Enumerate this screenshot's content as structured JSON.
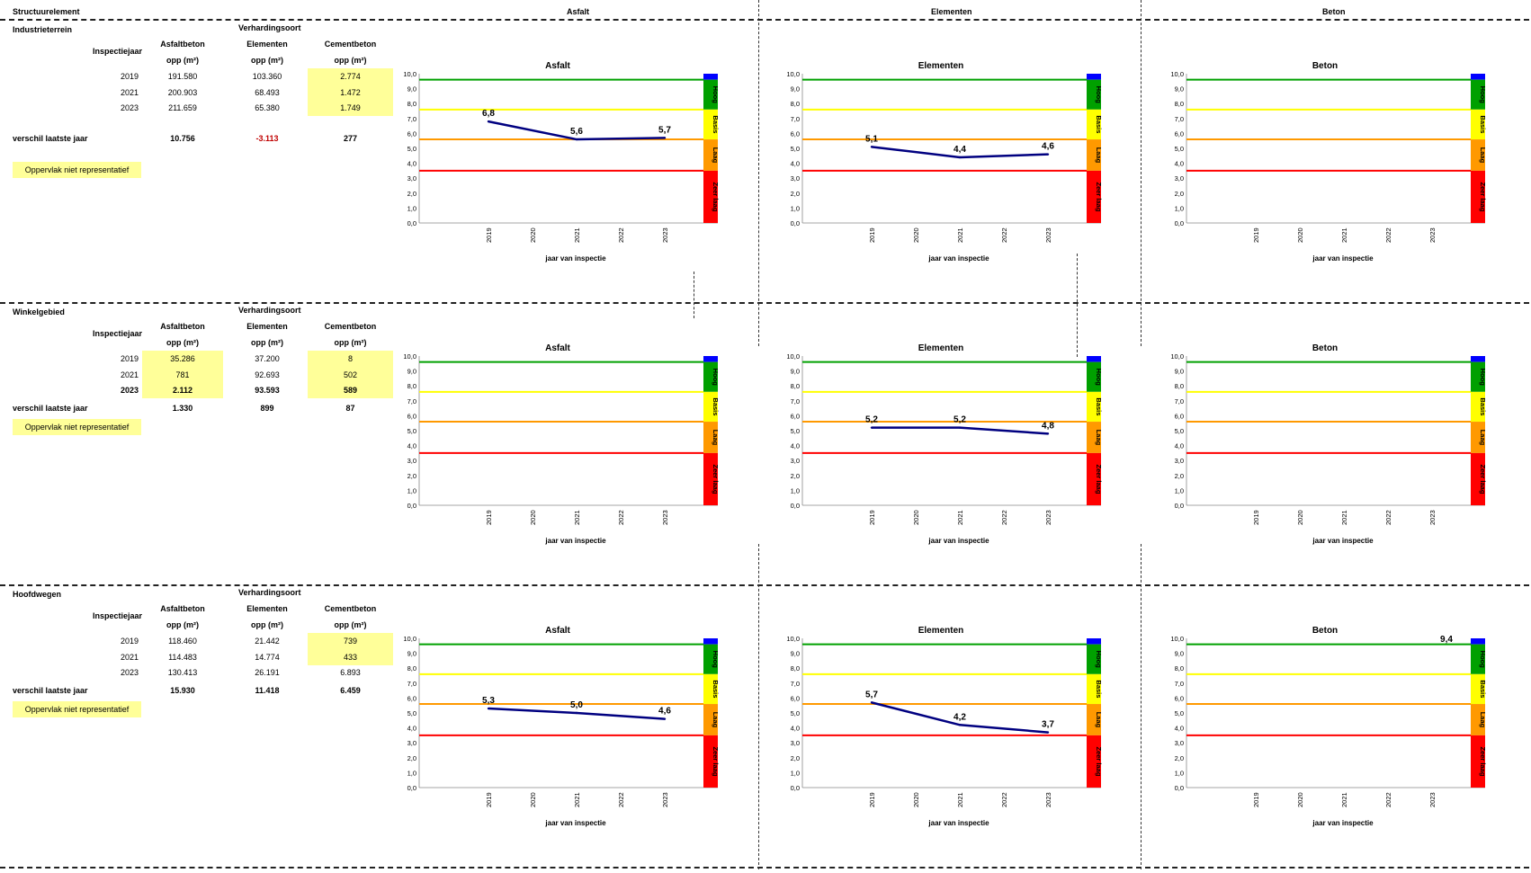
{
  "header": {
    "structuur_label": "Structuurelement",
    "col_asfalt": "Asfalt",
    "col_elementen": "Elementen",
    "col_beton": "Beton"
  },
  "legend_colors": {
    "hoog": "#00a000",
    "basis": "#ffff00",
    "laag": "#ff9900",
    "zeer_laag": "#ff0000",
    "top": "#0000ff",
    "line": "#000080"
  },
  "sections": [
    {
      "name": "Industrieterrein",
      "verhardingsoort": "Verhardingsoort",
      "inspectiejaar": "Inspectiejaar",
      "col_headers": [
        "Asfaltbeton",
        "Elementen",
        "Cementbeton"
      ],
      "unit": "opp (m²)",
      "rows": [
        {
          "year": "2019",
          "vals": [
            "191.580",
            "103.360",
            "2.774"
          ],
          "hl": [
            false,
            false,
            true
          ],
          "bold": false
        },
        {
          "year": "2021",
          "vals": [
            "200.903",
            "68.493",
            "1.472"
          ],
          "hl": [
            false,
            false,
            true
          ],
          "bold": false
        },
        {
          "year": "2023",
          "vals": [
            "211.659",
            "65.380",
            "1.749"
          ],
          "hl": [
            false,
            false,
            true
          ],
          "bold": false
        }
      ],
      "diff_label": "verschil laatste jaar",
      "diff": [
        "10.756",
        "-3.113",
        "277"
      ],
      "diff_red": [
        false,
        true,
        false
      ],
      "badge": "Oppervlak niet representatief"
    },
    {
      "name": "Winkelgebied",
      "verhardingsoort": "Verhardingsoort",
      "inspectiejaar": "Inspectiejaar",
      "col_headers": [
        "Asfaltbeton",
        "Elementen",
        "Cementbeton"
      ],
      "unit": "opp (m²)",
      "rows": [
        {
          "year": "2019",
          "vals": [
            "35.286",
            "37.200",
            "8"
          ],
          "hl": [
            true,
            false,
            true
          ],
          "bold": false
        },
        {
          "year": "2021",
          "vals": [
            "781",
            "92.693",
            "502"
          ],
          "hl": [
            true,
            false,
            true
          ],
          "bold": false
        },
        {
          "year": "2023",
          "vals": [
            "2.112",
            "93.593",
            "589"
          ],
          "hl": [
            true,
            false,
            true
          ],
          "bold": true
        }
      ],
      "diff_label": "verschil laatste jaar",
      "diff": [
        "1.330",
        "899",
        "87"
      ],
      "diff_red": [
        false,
        false,
        false
      ],
      "badge": "Oppervlak niet representatief"
    },
    {
      "name": "Hoofdwegen",
      "verhardingsoort": "Verhardingsoort",
      "inspectiejaar": "Inspectiejaar",
      "col_headers": [
        "Asfaltbeton",
        "Elementen",
        "Cementbeton"
      ],
      "unit": "opp (m²)",
      "rows": [
        {
          "year": "2019",
          "vals": [
            "118.460",
            "21.442",
            "739"
          ],
          "hl": [
            false,
            false,
            true
          ],
          "bold": false
        },
        {
          "year": "2021",
          "vals": [
            "114.483",
            "14.774",
            "433"
          ],
          "hl": [
            false,
            false,
            true
          ],
          "bold": false
        },
        {
          "year": "2023",
          "vals": [
            "130.413",
            "26.191",
            "6.893"
          ],
          "hl": [
            false,
            false,
            false
          ],
          "bold": false
        }
      ],
      "diff_label": "verschil laatste jaar",
      "diff": [
        "15.930",
        "11.418",
        "6.459"
      ],
      "diff_red": [
        false,
        false,
        false
      ],
      "badge": "Oppervlak niet representatief"
    }
  ],
  "chart_data": [
    {
      "type": "line",
      "title": "Asfalt",
      "xlabel": "jaar van inspectie",
      "x": [
        "2019",
        "2020",
        "2021",
        "2022",
        "2023"
      ],
      "ylim": [
        0,
        10
      ],
      "yticks": [
        "0,0",
        "1,0",
        "2,0",
        "3,0",
        "4,0",
        "5,0",
        "6,0",
        "7,0",
        "8,0",
        "9,0",
        "10,0"
      ],
      "thresholds": [
        3.5,
        5.6,
        7.6,
        9.6
      ],
      "band_labels": [
        "Hoog",
        "Basis",
        "Laag",
        "Zeer laag"
      ],
      "points": [
        {
          "x": "2019",
          "y": 6.8,
          "label": "6,8"
        },
        {
          "x": "2021",
          "y": 5.6,
          "label": "5,6"
        },
        {
          "x": "2023",
          "y": 5.7,
          "label": "5,7"
        }
      ]
    },
    {
      "type": "line",
      "title": "Elementen",
      "xlabel": "jaar van inspectie",
      "x": [
        "2019",
        "2020",
        "2021",
        "2022",
        "2023"
      ],
      "ylim": [
        0,
        10
      ],
      "yticks": [
        "0,0",
        "1,0",
        "2,0",
        "3,0",
        "4,0",
        "5,0",
        "6,0",
        "7,0",
        "8,0",
        "9,0",
        "10,0"
      ],
      "thresholds": [
        3.5,
        5.6,
        7.6,
        9.6
      ],
      "band_labels": [
        "Hoog",
        "Basis",
        "Laag",
        "Zeer laag"
      ],
      "points": [
        {
          "x": "2019",
          "y": 5.1,
          "label": "5,1"
        },
        {
          "x": "2021",
          "y": 4.4,
          "label": "4,4"
        },
        {
          "x": "2023",
          "y": 4.6,
          "label": "4,6"
        }
      ]
    },
    {
      "type": "line",
      "title": "Beton",
      "xlabel": "jaar van inspectie",
      "x": [
        "2019",
        "2020",
        "2021",
        "2022",
        "2023"
      ],
      "ylim": [
        0,
        10
      ],
      "yticks": [
        "0,0",
        "1,0",
        "2,0",
        "3,0",
        "4,0",
        "5,0",
        "6,0",
        "7,0",
        "8,0",
        "9,0",
        "10,0"
      ],
      "thresholds": [
        3.5,
        5.6,
        7.6,
        9.6
      ],
      "band_labels": [
        "Hoog",
        "Basis",
        "Laag",
        "Zeer laag"
      ],
      "points": []
    },
    {
      "type": "line",
      "title": "Asfalt",
      "xlabel": "jaar van inspectie",
      "x": [
        "2019",
        "2020",
        "2021",
        "2022",
        "2023"
      ],
      "ylim": [
        0,
        10
      ],
      "yticks": [
        "0,0",
        "1,0",
        "2,0",
        "3,0",
        "4,0",
        "5,0",
        "6,0",
        "7,0",
        "8,0",
        "9,0",
        "10,0"
      ],
      "thresholds": [
        3.5,
        5.6,
        7.6,
        9.6
      ],
      "band_labels": [
        "Hoog",
        "Basis",
        "Laag",
        "Zeer laag"
      ],
      "points": []
    },
    {
      "type": "line",
      "title": "Elementen",
      "xlabel": "jaar van inspectie",
      "x": [
        "2019",
        "2020",
        "2021",
        "2022",
        "2023"
      ],
      "ylim": [
        0,
        10
      ],
      "yticks": [
        "0,0",
        "1,0",
        "2,0",
        "3,0",
        "4,0",
        "5,0",
        "6,0",
        "7,0",
        "8,0",
        "9,0",
        "10,0"
      ],
      "thresholds": [
        3.5,
        5.6,
        7.6,
        9.6
      ],
      "band_labels": [
        "Hoog",
        "Basis",
        "Laag",
        "Zeer laag"
      ],
      "points": [
        {
          "x": "2019",
          "y": 5.2,
          "label": "5,2"
        },
        {
          "x": "2021",
          "y": 5.2,
          "label": "5,2"
        },
        {
          "x": "2023",
          "y": 4.8,
          "label": "4,8"
        }
      ]
    },
    {
      "type": "line",
      "title": "Beton",
      "xlabel": "jaar van inspectie",
      "x": [
        "2019",
        "2020",
        "2021",
        "2022",
        "2023"
      ],
      "ylim": [
        0,
        10
      ],
      "yticks": [
        "0,0",
        "1,0",
        "2,0",
        "3,0",
        "4,0",
        "5,0",
        "6,0",
        "7,0",
        "8,0",
        "9,0",
        "10,0"
      ],
      "thresholds": [
        3.5,
        5.6,
        7.6,
        9.6
      ],
      "band_labels": [
        "Hoog",
        "Basis",
        "Laag",
        "Zeer laag"
      ],
      "points": []
    },
    {
      "type": "line",
      "title": "Asfalt",
      "xlabel": "jaar van inspectie",
      "x": [
        "2019",
        "2020",
        "2021",
        "2022",
        "2023"
      ],
      "ylim": [
        0,
        10
      ],
      "yticks": [
        "0,0",
        "1,0",
        "2,0",
        "3,0",
        "4,0",
        "5,0",
        "6,0",
        "7,0",
        "8,0",
        "9,0",
        "10,0"
      ],
      "thresholds": [
        3.5,
        5.6,
        7.6,
        9.6
      ],
      "band_labels": [
        "Hoog",
        "Basis",
        "Laag",
        "Zeer laag"
      ],
      "points": [
        {
          "x": "2019",
          "y": 5.3,
          "label": "5,3"
        },
        {
          "x": "2021",
          "y": 5.0,
          "label": "5,0"
        },
        {
          "x": "2023",
          "y": 4.6,
          "label": "4,6"
        }
      ]
    },
    {
      "type": "line",
      "title": "Elementen",
      "xlabel": "jaar van inspectie",
      "x": [
        "2019",
        "2020",
        "2021",
        "2022",
        "2023"
      ],
      "ylim": [
        0,
        10
      ],
      "yticks": [
        "0,0",
        "1,0",
        "2,0",
        "3,0",
        "4,0",
        "5,0",
        "6,0",
        "7,0",
        "8,0",
        "9,0",
        "10,0"
      ],
      "thresholds": [
        3.5,
        5.6,
        7.6,
        9.6
      ],
      "band_labels": [
        "Hoog",
        "Basis",
        "Laag",
        "Zeer laag"
      ],
      "points": [
        {
          "x": "2019",
          "y": 5.7,
          "label": "5,7"
        },
        {
          "x": "2021",
          "y": 4.2,
          "label": "4,2"
        },
        {
          "x": "2023",
          "y": 3.7,
          "label": "3,7"
        }
      ]
    },
    {
      "type": "line",
      "title": "Beton",
      "xlabel": "jaar van inspectie",
      "x": [
        "2019",
        "2020",
        "2021",
        "2022",
        "2023"
      ],
      "ylim": [
        0,
        10
      ],
      "yticks": [
        "0,0",
        "1,0",
        "2,0",
        "3,0",
        "4,0",
        "5,0",
        "6,0",
        "7,0",
        "8,0",
        "9,0",
        "10,0"
      ],
      "thresholds": [
        3.5,
        5.6,
        7.6,
        9.6
      ],
      "band_labels": [
        "Hoog",
        "Basis",
        "Laag",
        "Zeer laag"
      ],
      "points": [
        {
          "x": "2023",
          "y": 9.4,
          "label": "9,4",
          "label_only": true
        }
      ]
    }
  ]
}
